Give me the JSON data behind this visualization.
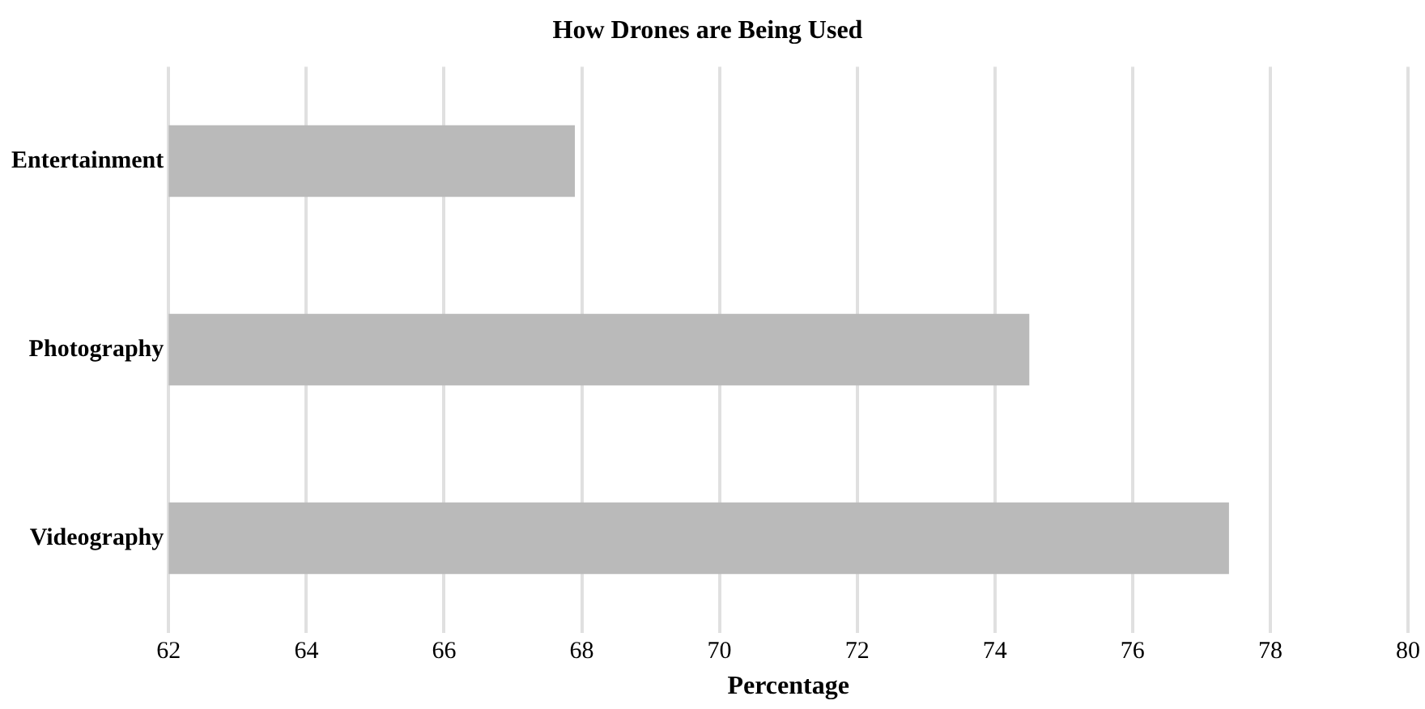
{
  "chart_data": {
    "type": "bar",
    "orientation": "horizontal",
    "title": "How Drones are Being Used",
    "xlabel": "Percentage",
    "categories": [
      "Entertainment",
      "Photography",
      "Videography"
    ],
    "values": [
      67.9,
      74.5,
      77.4
    ],
    "color": "#bababa",
    "xlim": [
      62,
      80
    ],
    "xticks": [
      62,
      64,
      66,
      68,
      70,
      72,
      74,
      76,
      78,
      80
    ],
    "grid": "x"
  }
}
